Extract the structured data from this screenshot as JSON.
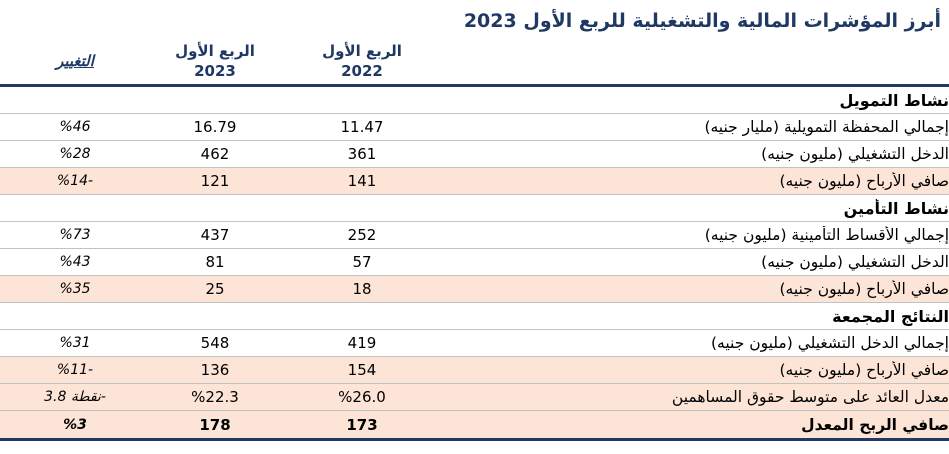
{
  "title": "أبرز المؤشرات المالية والتشغيلية للربع الأول 2023",
  "colors": {
    "accent_navy": "#1f3864",
    "highlight_peach": "#fce4d6",
    "row_separator": "#c2c2c2"
  },
  "header": {
    "change_label": "التغيير",
    "q1_2023_line1": "الربع الأول",
    "q1_2023_line2": "2023",
    "q1_2022_line1": "الربع الأول",
    "q1_2022_line2": "2022"
  },
  "table": {
    "sections": [
      {
        "name": "نشاط التمويل",
        "rows": [
          {
            "label": "إجمالي المحفظة التمويلية (مليار جنيه)",
            "y2022": "11.47",
            "y2023": "16.79",
            "change": "%46",
            "highlight": false,
            "bold": false
          },
          {
            "label": "الدخل التشغيلي (مليون جنيه)",
            "y2022": "361",
            "y2023": "462",
            "change": "%28",
            "highlight": false,
            "bold": false
          },
          {
            "label": "صافي الأرباح (مليون جنيه)",
            "y2022": "141",
            "y2023": "121",
            "change": "%14-",
            "highlight": true,
            "bold": false
          }
        ]
      },
      {
        "name": "نشاط التأمين",
        "rows": [
          {
            "label": "إجمالي الأقساط التأمينية (مليون جنيه)",
            "y2022": "252",
            "y2023": "437",
            "change": "%73",
            "highlight": false,
            "bold": false
          },
          {
            "label": "الدخل التشغيلي (مليون جنيه)",
            "y2022": "57",
            "y2023": "81",
            "change": "%43",
            "highlight": false,
            "bold": false
          },
          {
            "label": "صافي الأرباح (مليون جنيه)",
            "y2022": "18",
            "y2023": "25",
            "change": "%35",
            "highlight": true,
            "bold": false
          }
        ]
      },
      {
        "name": "النتائج المجمعة",
        "rows": [
          {
            "label": "إجمالي الدخل التشغيلي (مليون جنيه)",
            "y2022": "419",
            "y2023": "548",
            "change": "%31",
            "highlight": false,
            "bold": false
          },
          {
            "label": "صافي الأرباح (مليون جنيه)",
            "y2022": "154",
            "y2023": "136",
            "change": "%11-",
            "highlight": true,
            "bold": false
          },
          {
            "label": "معدل العائد على متوسط حقوق المساهمين",
            "y2022": "%26.0",
            "y2023": "%22.3",
            "change": "نقطة 3.8-",
            "highlight": true,
            "bold": false
          },
          {
            "label": "صافي الربح المعدل",
            "y2022": "173",
            "y2023": "178",
            "change": "%3",
            "highlight": true,
            "bold": true
          }
        ]
      }
    ]
  }
}
